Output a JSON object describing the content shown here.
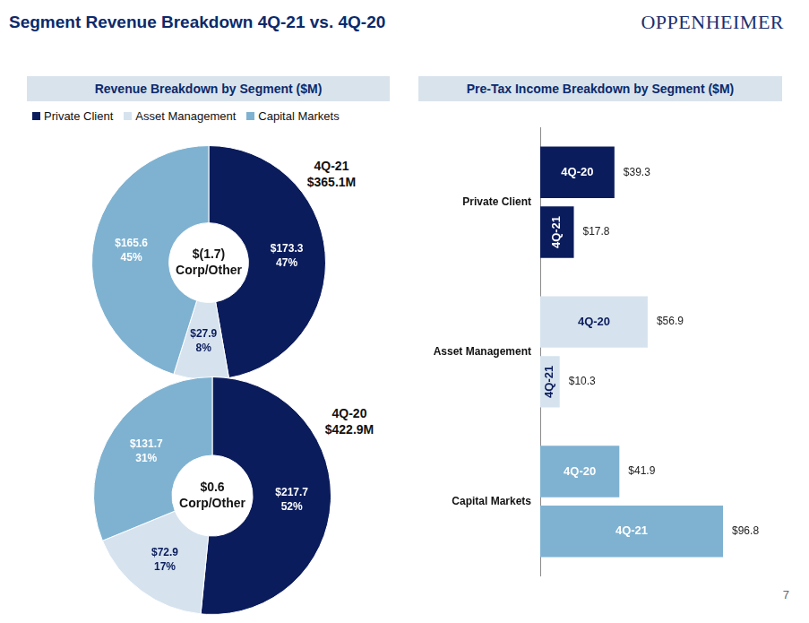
{
  "header": {
    "title": "Segment Revenue Breakdown 4Q-21 vs. 4Q-20",
    "logo": "OPPENHEIMER",
    "page_number": 7
  },
  "chart_data": [
    {
      "type": "doughnut",
      "title": "Revenue Breakdown by Segment ($M)",
      "legend": "top",
      "categories": [
        "Private Client",
        "Asset Management",
        "Capital Markets"
      ],
      "colors": [
        "#0b1c5c",
        "#d6e3ee",
        "#7fb2d1"
      ],
      "period": "4Q-21",
      "total": 365.1,
      "total_label": "$365.1M",
      "values": [
        173.3,
        27.9,
        165.6
      ],
      "value_labels": [
        "$173.3",
        "$27.9",
        "$165.6"
      ],
      "percents": [
        47,
        8,
        45
      ],
      "percent_labels": [
        "47%",
        "8%",
        "45%"
      ],
      "center_value": -1.7,
      "center_value_label": "$(1.7)",
      "center_label": "Corp/Other",
      "data_labels": true
    },
    {
      "type": "doughnut",
      "categories": [
        "Private Client",
        "Asset Management",
        "Capital Markets"
      ],
      "colors": [
        "#0b1c5c",
        "#d6e3ee",
        "#7fb2d1"
      ],
      "period": "4Q-20",
      "total": 422.9,
      "total_label": "$422.9M",
      "values": [
        217.7,
        72.9,
        131.7
      ],
      "value_labels": [
        "$217.7",
        "$72.9",
        "$131.7"
      ],
      "percents": [
        52,
        17,
        31
      ],
      "percent_labels": [
        "52%",
        "17%",
        "31%"
      ],
      "center_value": 0.6,
      "center_value_label": "$0.6",
      "center_label": "Corp/Other",
      "data_labels": true
    },
    {
      "type": "bar",
      "orientation": "horizontal",
      "title": "Pre-Tax Income Breakdown by Segment ($M)",
      "categories": [
        "Private Client",
        "Asset Management",
        "Capital Markets"
      ],
      "series": [
        {
          "name": "4Q-20",
          "colors": [
            "#0b1c5c",
            "#d6e3ee",
            "#7fb2d1"
          ],
          "values": [
            39.3,
            56.9,
            41.9
          ],
          "value_labels": [
            "$39.3",
            "$56.9",
            "$41.9"
          ]
        },
        {
          "name": "4Q-21",
          "colors": [
            "#0b1c5c",
            "#d6e3ee",
            "#7fb2d1"
          ],
          "values": [
            17.8,
            10.3,
            96.8
          ],
          "value_labels": [
            "$17.8",
            "$10.3",
            "$96.8"
          ]
        }
      ],
      "xlim": [
        0,
        130
      ],
      "xticks": [],
      "grid": false,
      "tick_labels": "y",
      "data_labels": true
    }
  ]
}
